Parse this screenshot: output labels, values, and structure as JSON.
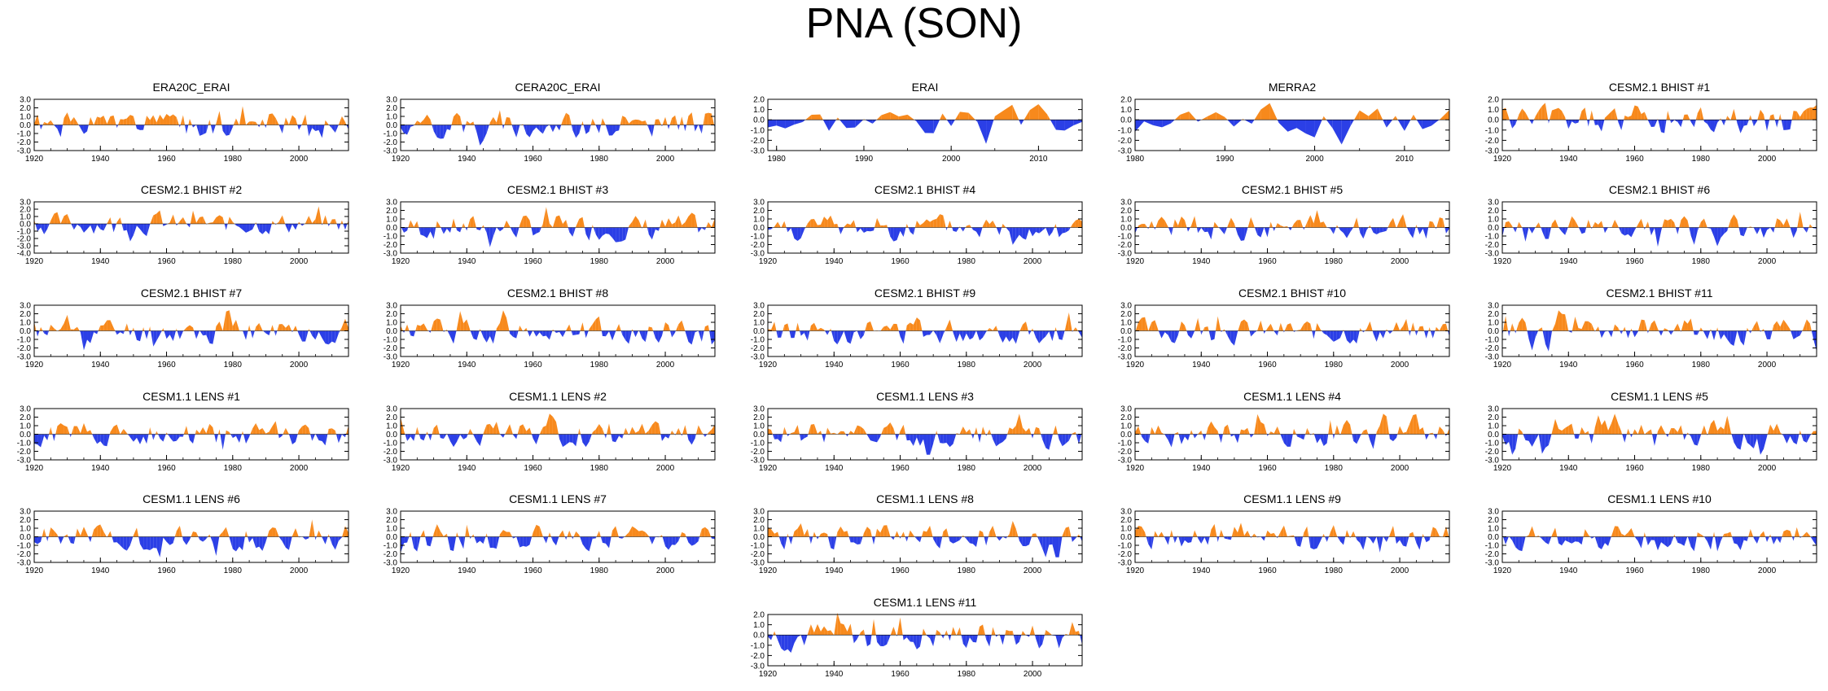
{
  "figure": {
    "title": "PNA (SON)"
  },
  "colors": {
    "positive": "#F7891C",
    "negative": "#2B3FE6",
    "axis": "#000000",
    "background": "#ffffff"
  },
  "chart_data": {
    "type": "area",
    "ylim": [
      -3.0,
      2.0
    ],
    "ytick_labels_wide": [
      "3.0",
      "2.0",
      "1.0",
      "0.0",
      "-1.0",
      "-2.0",
      "-3.0"
    ],
    "ytick_labels_short": [
      "2.0",
      "1.0",
      "0.0",
      "-1.0",
      "-2.0",
      "-3.0"
    ],
    "panels": [
      {
        "title": "ERA20C_ERAI",
        "x_start": 1920,
        "x_end": 2015,
        "ylim": [
          -3,
          3
        ],
        "xticks": [
          "1920",
          "1940",
          "1960",
          "1980",
          "2000"
        ],
        "seed": 1
      },
      {
        "title": "CERA20C_ERAI",
        "x_start": 1920,
        "x_end": 2015,
        "ylim": [
          -3,
          3
        ],
        "xticks": [
          "1920",
          "1940",
          "1960",
          "1980",
          "2000"
        ],
        "seed": 2
      },
      {
        "title": "ERAI",
        "x_start": 1979,
        "x_end": 2015,
        "ylim": [
          -3,
          2
        ],
        "xticks": [
          "1980",
          "1990",
          "2000",
          "2010"
        ],
        "seed": 3
      },
      {
        "title": "MERRA2",
        "x_start": 1980,
        "x_end": 2015,
        "ylim": [
          -3,
          2
        ],
        "xticks": [
          "1980",
          "1990",
          "2000",
          "2010"
        ],
        "seed": 4
      },
      {
        "title": "CESM2.1 BHIST #1",
        "x_start": 1920,
        "x_end": 2015,
        "ylim": [
          -3,
          2
        ],
        "xticks": [
          "1920",
          "1940",
          "1960",
          "1980",
          "2000"
        ],
        "seed": 5
      },
      {
        "title": "CESM2.1 BHIST #2",
        "x_start": 1920,
        "x_end": 2015,
        "ylim": [
          -4,
          3
        ],
        "xticks": [
          "1920",
          "1940",
          "1960",
          "1980",
          "2000"
        ],
        "seed": 6
      },
      {
        "title": "CESM2.1 BHIST #3",
        "x_start": 1920,
        "x_end": 2015,
        "ylim": [
          -3,
          3
        ],
        "xticks": [
          "1920",
          "1940",
          "1960",
          "1980",
          "2000"
        ],
        "seed": 7
      },
      {
        "title": "CESM2.1 BHIST #4",
        "x_start": 1920,
        "x_end": 2015,
        "ylim": [
          -3,
          3
        ],
        "xticks": [
          "1920",
          "1940",
          "1960",
          "1980",
          "2000"
        ],
        "seed": 8
      },
      {
        "title": "CESM2.1 BHIST #5",
        "x_start": 1920,
        "x_end": 2015,
        "ylim": [
          -3,
          3
        ],
        "xticks": [
          "1920",
          "1940",
          "1960",
          "1980",
          "2000"
        ],
        "seed": 9
      },
      {
        "title": "CESM2.1 BHIST #6",
        "x_start": 1920,
        "x_end": 2015,
        "ylim": [
          -3,
          3
        ],
        "xticks": [
          "1920",
          "1940",
          "1960",
          "1980",
          "2000"
        ],
        "seed": 10
      },
      {
        "title": "CESM2.1 BHIST #7",
        "x_start": 1920,
        "x_end": 2015,
        "ylim": [
          -3,
          3
        ],
        "xticks": [
          "1920",
          "1940",
          "1960",
          "1980",
          "2000"
        ],
        "seed": 11
      },
      {
        "title": "CESM2.1 BHIST #8",
        "x_start": 1920,
        "x_end": 2015,
        "ylim": [
          -3,
          3
        ],
        "xticks": [
          "1920",
          "1940",
          "1960",
          "1980",
          "2000"
        ],
        "seed": 12
      },
      {
        "title": "CESM2.1 BHIST #9",
        "x_start": 1920,
        "x_end": 2015,
        "ylim": [
          -3,
          3
        ],
        "xticks": [
          "1920",
          "1940",
          "1960",
          "1980",
          "2000"
        ],
        "seed": 13
      },
      {
        "title": "CESM2.1 BHIST #10",
        "x_start": 1920,
        "x_end": 2015,
        "ylim": [
          -3,
          3
        ],
        "xticks": [
          "1920",
          "1940",
          "1960",
          "1980",
          "2000"
        ],
        "seed": 14
      },
      {
        "title": "CESM2.1 BHIST #11",
        "x_start": 1920,
        "x_end": 2015,
        "ylim": [
          -3,
          3
        ],
        "xticks": [
          "1920",
          "1940",
          "1960",
          "1980",
          "2000"
        ],
        "seed": 15
      },
      {
        "title": "CESM1.1 LENS #1",
        "x_start": 1920,
        "x_end": 2015,
        "ylim": [
          -3,
          3
        ],
        "xticks": [
          "1920",
          "1940",
          "1960",
          "1980",
          "2000"
        ],
        "seed": 16
      },
      {
        "title": "CESM1.1 LENS #2",
        "x_start": 1920,
        "x_end": 2015,
        "ylim": [
          -3,
          3
        ],
        "xticks": [
          "1920",
          "1940",
          "1960",
          "1980",
          "2000"
        ],
        "seed": 17
      },
      {
        "title": "CESM1.1 LENS #3",
        "x_start": 1920,
        "x_end": 2015,
        "ylim": [
          -3,
          3
        ],
        "xticks": [
          "1920",
          "1940",
          "1960",
          "1980",
          "2000"
        ],
        "seed": 18
      },
      {
        "title": "CESM1.1 LENS #4",
        "x_start": 1920,
        "x_end": 2015,
        "ylim": [
          -3,
          3
        ],
        "xticks": [
          "1920",
          "1940",
          "1960",
          "1980",
          "2000"
        ],
        "seed": 19
      },
      {
        "title": "CESM1.1 LENS #5",
        "x_start": 1920,
        "x_end": 2015,
        "ylim": [
          -3,
          3
        ],
        "xticks": [
          "1920",
          "1940",
          "1960",
          "1980",
          "2000"
        ],
        "seed": 20
      },
      {
        "title": "CESM1.1 LENS #6",
        "x_start": 1920,
        "x_end": 2015,
        "ylim": [
          -3,
          3
        ],
        "xticks": [
          "1920",
          "1940",
          "1960",
          "1980",
          "2000"
        ],
        "seed": 21
      },
      {
        "title": "CESM1.1 LENS #7",
        "x_start": 1920,
        "x_end": 2015,
        "ylim": [
          -3,
          3
        ],
        "xticks": [
          "1920",
          "1940",
          "1960",
          "1980",
          "2000"
        ],
        "seed": 22
      },
      {
        "title": "CESM1.1 LENS #8",
        "x_start": 1920,
        "x_end": 2015,
        "ylim": [
          -3,
          3
        ],
        "xticks": [
          "1920",
          "1940",
          "1960",
          "1980",
          "2000"
        ],
        "seed": 23
      },
      {
        "title": "CESM1.1 LENS #9",
        "x_start": 1920,
        "x_end": 2015,
        "ylim": [
          -3,
          3
        ],
        "xticks": [
          "1920",
          "1940",
          "1960",
          "1980",
          "2000"
        ],
        "seed": 24
      },
      {
        "title": "CESM1.1 LENS #10",
        "x_start": 1920,
        "x_end": 2015,
        "ylim": [
          -3,
          3
        ],
        "xticks": [
          "1920",
          "1940",
          "1960",
          "1980",
          "2000"
        ],
        "seed": 25
      },
      {
        "title": "CESM1.1 LENS #11",
        "x_start": 1920,
        "x_end": 2015,
        "ylim": [
          -3,
          2
        ],
        "xticks": [
          "1920",
          "1940",
          "1960",
          "1980",
          "2000"
        ],
        "seed": 26
      }
    ]
  }
}
